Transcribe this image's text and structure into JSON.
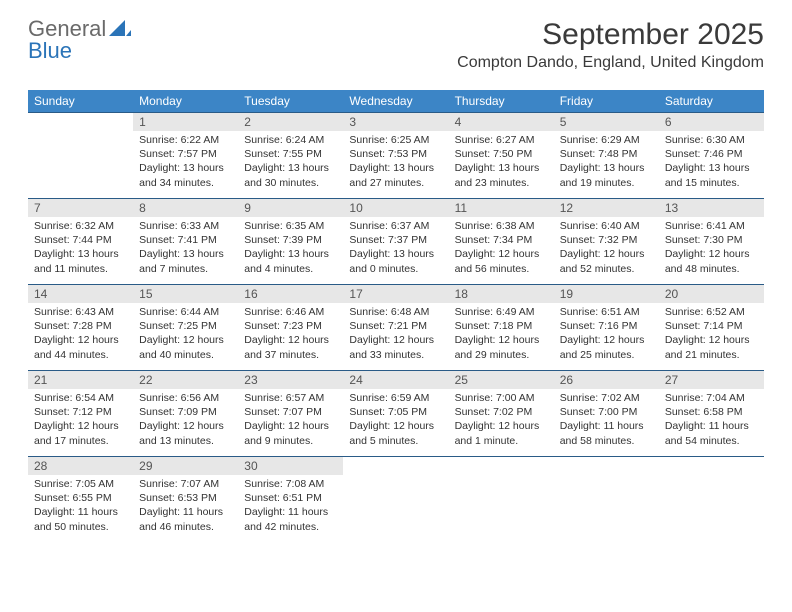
{
  "logo": {
    "text1": "General",
    "text2": "Blue"
  },
  "title": "September 2025",
  "location": "Compton Dando, England, United Kingdom",
  "dayHeaders": [
    "Sunday",
    "Monday",
    "Tuesday",
    "Wednesday",
    "Thursday",
    "Friday",
    "Saturday"
  ],
  "colors": {
    "header_bg": "#3c85c6",
    "header_text": "#ffffff",
    "daynum_bg": "#e7e7e7",
    "border": "#2a5b87",
    "logo_gray": "#6a6a6a",
    "logo_blue": "#2b74b8",
    "body_text": "#333333"
  },
  "weeks": [
    [
      {
        "num": "",
        "sunrise": "",
        "sunset": "",
        "daylight": ""
      },
      {
        "num": "1",
        "sunrise": "Sunrise: 6:22 AM",
        "sunset": "Sunset: 7:57 PM",
        "daylight": "Daylight: 13 hours and 34 minutes."
      },
      {
        "num": "2",
        "sunrise": "Sunrise: 6:24 AM",
        "sunset": "Sunset: 7:55 PM",
        "daylight": "Daylight: 13 hours and 30 minutes."
      },
      {
        "num": "3",
        "sunrise": "Sunrise: 6:25 AM",
        "sunset": "Sunset: 7:53 PM",
        "daylight": "Daylight: 13 hours and 27 minutes."
      },
      {
        "num": "4",
        "sunrise": "Sunrise: 6:27 AM",
        "sunset": "Sunset: 7:50 PM",
        "daylight": "Daylight: 13 hours and 23 minutes."
      },
      {
        "num": "5",
        "sunrise": "Sunrise: 6:29 AM",
        "sunset": "Sunset: 7:48 PM",
        "daylight": "Daylight: 13 hours and 19 minutes."
      },
      {
        "num": "6",
        "sunrise": "Sunrise: 6:30 AM",
        "sunset": "Sunset: 7:46 PM",
        "daylight": "Daylight: 13 hours and 15 minutes."
      }
    ],
    [
      {
        "num": "7",
        "sunrise": "Sunrise: 6:32 AM",
        "sunset": "Sunset: 7:44 PM",
        "daylight": "Daylight: 13 hours and 11 minutes."
      },
      {
        "num": "8",
        "sunrise": "Sunrise: 6:33 AM",
        "sunset": "Sunset: 7:41 PM",
        "daylight": "Daylight: 13 hours and 7 minutes."
      },
      {
        "num": "9",
        "sunrise": "Sunrise: 6:35 AM",
        "sunset": "Sunset: 7:39 PM",
        "daylight": "Daylight: 13 hours and 4 minutes."
      },
      {
        "num": "10",
        "sunrise": "Sunrise: 6:37 AM",
        "sunset": "Sunset: 7:37 PM",
        "daylight": "Daylight: 13 hours and 0 minutes."
      },
      {
        "num": "11",
        "sunrise": "Sunrise: 6:38 AM",
        "sunset": "Sunset: 7:34 PM",
        "daylight": "Daylight: 12 hours and 56 minutes."
      },
      {
        "num": "12",
        "sunrise": "Sunrise: 6:40 AM",
        "sunset": "Sunset: 7:32 PM",
        "daylight": "Daylight: 12 hours and 52 minutes."
      },
      {
        "num": "13",
        "sunrise": "Sunrise: 6:41 AM",
        "sunset": "Sunset: 7:30 PM",
        "daylight": "Daylight: 12 hours and 48 minutes."
      }
    ],
    [
      {
        "num": "14",
        "sunrise": "Sunrise: 6:43 AM",
        "sunset": "Sunset: 7:28 PM",
        "daylight": "Daylight: 12 hours and 44 minutes."
      },
      {
        "num": "15",
        "sunrise": "Sunrise: 6:44 AM",
        "sunset": "Sunset: 7:25 PM",
        "daylight": "Daylight: 12 hours and 40 minutes."
      },
      {
        "num": "16",
        "sunrise": "Sunrise: 6:46 AM",
        "sunset": "Sunset: 7:23 PM",
        "daylight": "Daylight: 12 hours and 37 minutes."
      },
      {
        "num": "17",
        "sunrise": "Sunrise: 6:48 AM",
        "sunset": "Sunset: 7:21 PM",
        "daylight": "Daylight: 12 hours and 33 minutes."
      },
      {
        "num": "18",
        "sunrise": "Sunrise: 6:49 AM",
        "sunset": "Sunset: 7:18 PM",
        "daylight": "Daylight: 12 hours and 29 minutes."
      },
      {
        "num": "19",
        "sunrise": "Sunrise: 6:51 AM",
        "sunset": "Sunset: 7:16 PM",
        "daylight": "Daylight: 12 hours and 25 minutes."
      },
      {
        "num": "20",
        "sunrise": "Sunrise: 6:52 AM",
        "sunset": "Sunset: 7:14 PM",
        "daylight": "Daylight: 12 hours and 21 minutes."
      }
    ],
    [
      {
        "num": "21",
        "sunrise": "Sunrise: 6:54 AM",
        "sunset": "Sunset: 7:12 PM",
        "daylight": "Daylight: 12 hours and 17 minutes."
      },
      {
        "num": "22",
        "sunrise": "Sunrise: 6:56 AM",
        "sunset": "Sunset: 7:09 PM",
        "daylight": "Daylight: 12 hours and 13 minutes."
      },
      {
        "num": "23",
        "sunrise": "Sunrise: 6:57 AM",
        "sunset": "Sunset: 7:07 PM",
        "daylight": "Daylight: 12 hours and 9 minutes."
      },
      {
        "num": "24",
        "sunrise": "Sunrise: 6:59 AM",
        "sunset": "Sunset: 7:05 PM",
        "daylight": "Daylight: 12 hours and 5 minutes."
      },
      {
        "num": "25",
        "sunrise": "Sunrise: 7:00 AM",
        "sunset": "Sunset: 7:02 PM",
        "daylight": "Daylight: 12 hours and 1 minute."
      },
      {
        "num": "26",
        "sunrise": "Sunrise: 7:02 AM",
        "sunset": "Sunset: 7:00 PM",
        "daylight": "Daylight: 11 hours and 58 minutes."
      },
      {
        "num": "27",
        "sunrise": "Sunrise: 7:04 AM",
        "sunset": "Sunset: 6:58 PM",
        "daylight": "Daylight: 11 hours and 54 minutes."
      }
    ],
    [
      {
        "num": "28",
        "sunrise": "Sunrise: 7:05 AM",
        "sunset": "Sunset: 6:55 PM",
        "daylight": "Daylight: 11 hours and 50 minutes."
      },
      {
        "num": "29",
        "sunrise": "Sunrise: 7:07 AM",
        "sunset": "Sunset: 6:53 PM",
        "daylight": "Daylight: 11 hours and 46 minutes."
      },
      {
        "num": "30",
        "sunrise": "Sunrise: 7:08 AM",
        "sunset": "Sunset: 6:51 PM",
        "daylight": "Daylight: 11 hours and 42 minutes."
      },
      {
        "num": "",
        "sunrise": "",
        "sunset": "",
        "daylight": ""
      },
      {
        "num": "",
        "sunrise": "",
        "sunset": "",
        "daylight": ""
      },
      {
        "num": "",
        "sunrise": "",
        "sunset": "",
        "daylight": ""
      },
      {
        "num": "",
        "sunrise": "",
        "sunset": "",
        "daylight": ""
      }
    ]
  ]
}
